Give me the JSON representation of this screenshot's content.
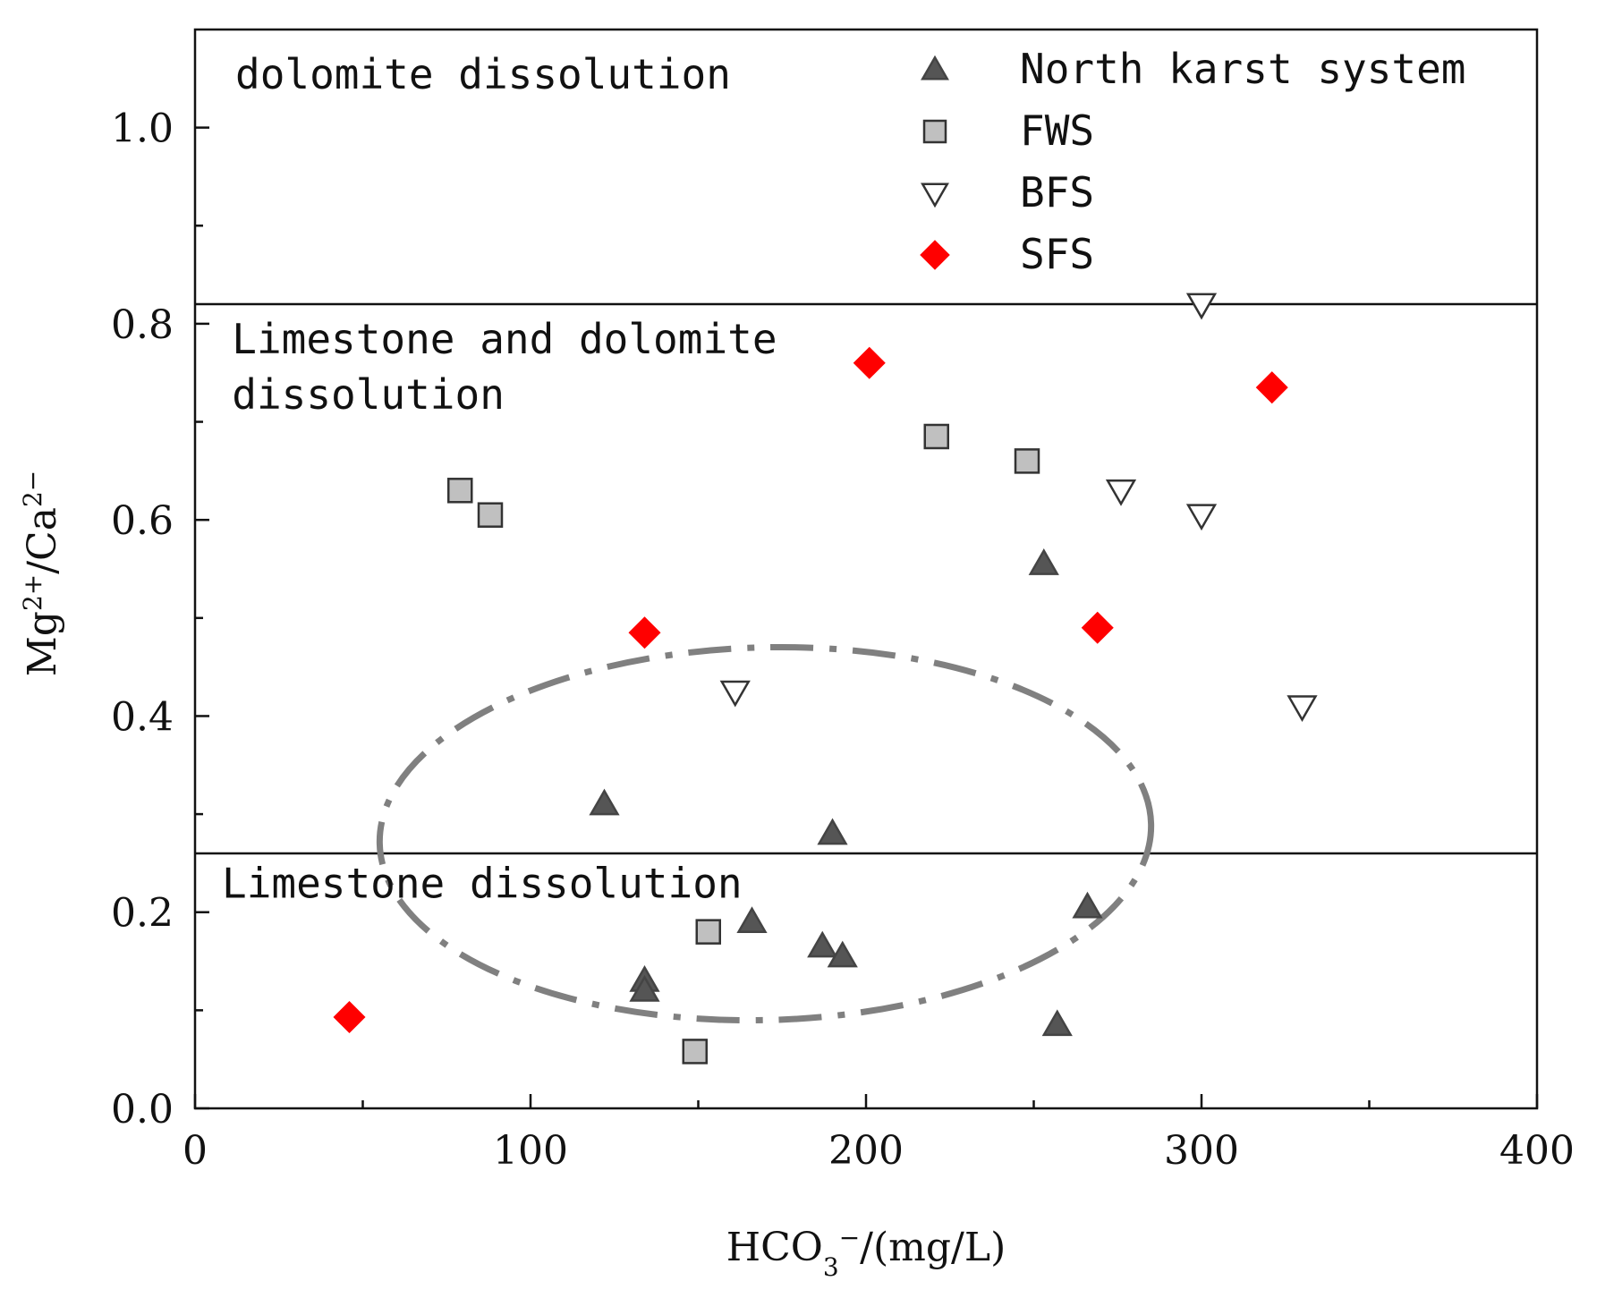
{
  "chart_data": {
    "type": "scatter",
    "xlabel": {
      "main": "HCO",
      "sub": "3",
      "sup": "−",
      "rest": "/(mg/L)"
    },
    "ylabel": {
      "a": "Mg",
      "a_sup": "2+",
      "b": "/Ca",
      "b_sup": "2−"
    },
    "xlim": [
      0,
      400
    ],
    "ylim": [
      0,
      1.1
    ],
    "x_ticks": [
      0,
      100,
      200,
      300,
      400
    ],
    "x_tick_labels": [
      "0",
      "100",
      "200",
      "300",
      "400"
    ],
    "x_minor_ticks": [
      50,
      150,
      250,
      350
    ],
    "y_ticks": [
      0,
      0.2,
      0.4,
      0.6,
      0.8,
      1.0
    ],
    "y_tick_labels": [
      "0.0",
      "0.2",
      "0.4",
      "0.6",
      "0.8",
      "1.0"
    ],
    "y_minor_ticks": [
      0.1,
      0.3,
      0.5,
      0.7,
      0.9
    ],
    "thresholds": [
      0.82,
      0.26
    ],
    "region_labels": [
      {
        "lines": [
          "dolomite  dissolution"
        ],
        "x": 12,
        "y": 1.04
      },
      {
        "lines": [
          "Limestone and dolomite",
          "dissolution"
        ],
        "x": 11,
        "y": 0.77
      },
      {
        "lines": [
          "Limestone dissolution"
        ],
        "x": 8,
        "y": 0.215
      }
    ],
    "ellipse": {
      "cx": 170,
      "cy": 0.28,
      "rx": 115,
      "ry": 0.19,
      "color": "#808080"
    },
    "legend_position": "top-right",
    "series": [
      {
        "name": "North karst system",
        "marker": "triangle-up",
        "fill": "#555555",
        "stroke": "#444444",
        "points": [
          [
            122,
            0.31
          ],
          [
            190,
            0.28
          ],
          [
            253,
            0.555
          ],
          [
            134,
            0.13
          ],
          [
            134,
            0.12
          ],
          [
            166,
            0.19
          ],
          [
            187,
            0.165
          ],
          [
            193,
            0.155
          ],
          [
            266,
            0.205
          ],
          [
            257,
            0.085
          ]
        ]
      },
      {
        "name": "FWS",
        "marker": "square",
        "fill": "#c0c0c0",
        "stroke": "#333333",
        "points": [
          [
            79,
            0.63
          ],
          [
            88,
            0.605
          ],
          [
            221,
            0.685
          ],
          [
            248,
            0.66
          ],
          [
            153,
            0.18
          ],
          [
            149,
            0.058
          ]
        ]
      },
      {
        "name": "BFS",
        "marker": "triangle-down",
        "fill": "#ffffff",
        "stroke": "#333333",
        "points": [
          [
            300,
            0.82
          ],
          [
            276,
            0.63
          ],
          [
            300,
            0.605
          ],
          [
            161,
            0.425
          ],
          [
            330,
            0.41
          ]
        ]
      },
      {
        "name": "SFS",
        "marker": "diamond",
        "fill": "#ff0000",
        "stroke": "#ff0000",
        "points": [
          [
            201,
            0.76
          ],
          [
            321,
            0.735
          ],
          [
            134,
            0.485
          ],
          [
            269,
            0.49
          ],
          [
            46,
            0.093
          ]
        ]
      }
    ]
  }
}
